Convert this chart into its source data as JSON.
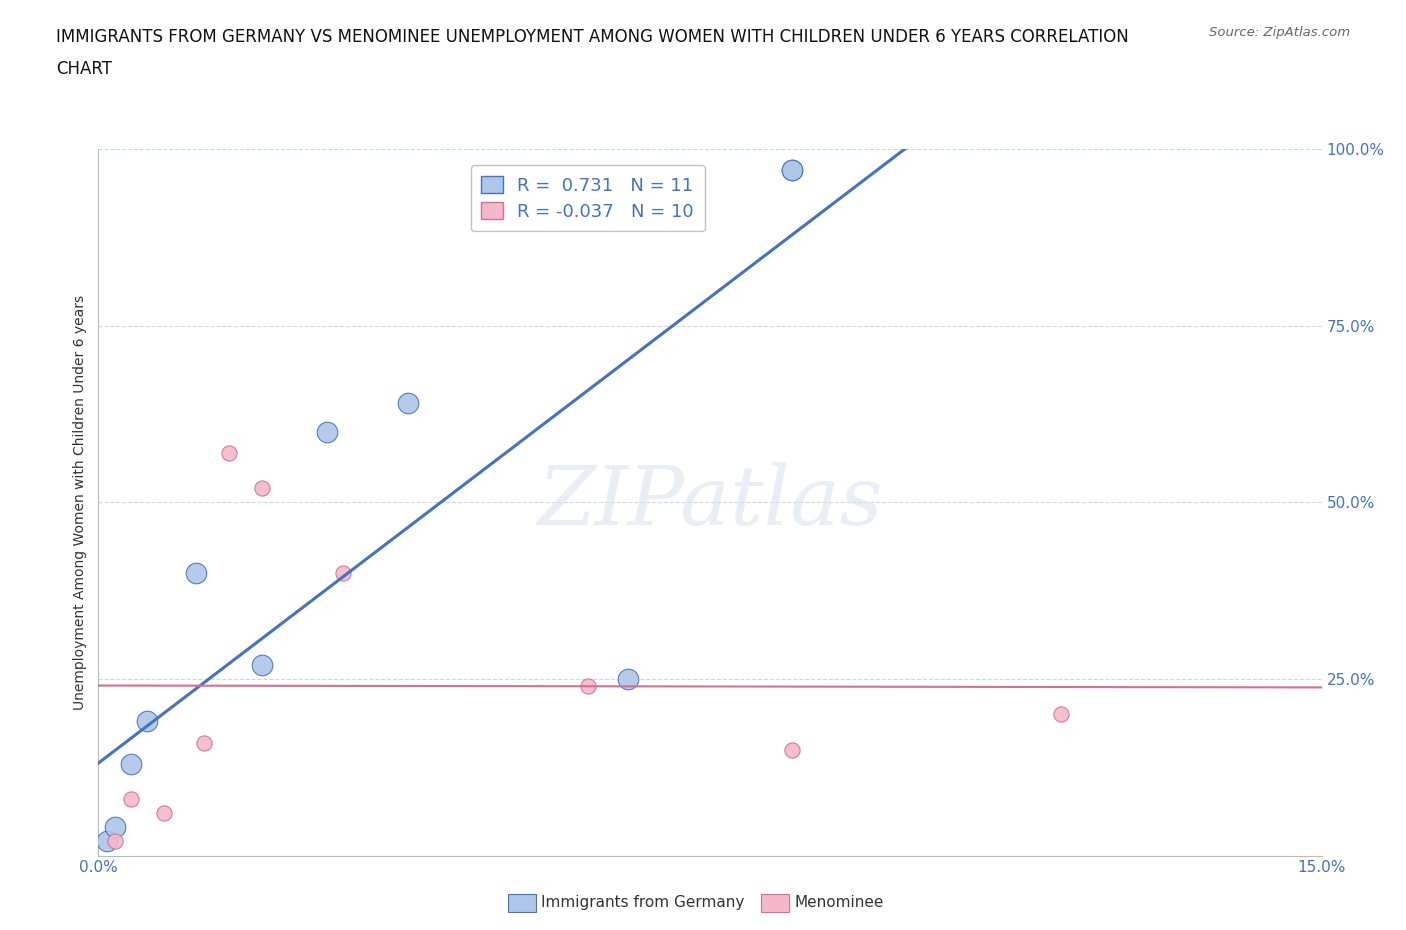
{
  "title_line1": "IMMIGRANTS FROM GERMANY VS MENOMINEE UNEMPLOYMENT AMONG WOMEN WITH CHILDREN UNDER 6 YEARS CORRELATION",
  "title_line2": "CHART",
  "source": "Source: ZipAtlas.com",
  "ylabel": "Unemployment Among Women with Children Under 6 years",
  "xlim": [
    0.0,
    0.15
  ],
  "ylim": [
    0.0,
    1.0
  ],
  "xticks": [
    0.0,
    0.025,
    0.05,
    0.075,
    0.1,
    0.125,
    0.15
  ],
  "xticklabels_show": [
    "0.0%",
    "15.0%"
  ],
  "yticks": [
    0.0,
    0.25,
    0.5,
    0.75,
    1.0
  ],
  "yticklabels": [
    "",
    "25.0%",
    "50.0%",
    "75.0%",
    "100.0%"
  ],
  "blue_color": "#aec6e8",
  "blue_line_color": "#4472c4",
  "pink_color": "#f5b8c8",
  "pink_line_color": "#d47090",
  "blue_scatter_x": [
    0.001,
    0.002,
    0.004,
    0.006,
    0.012,
    0.02,
    0.028,
    0.038,
    0.065,
    0.085,
    0.085
  ],
  "blue_scatter_y": [
    0.02,
    0.04,
    0.13,
    0.19,
    0.4,
    0.27,
    0.6,
    0.64,
    0.25,
    0.97,
    0.97
  ],
  "pink_scatter_x": [
    0.002,
    0.004,
    0.008,
    0.013,
    0.016,
    0.02,
    0.03,
    0.06,
    0.085,
    0.118
  ],
  "pink_scatter_y": [
    0.02,
    0.08,
    0.06,
    0.16,
    0.57,
    0.52,
    0.4,
    0.24,
    0.15,
    0.2
  ],
  "blue_R": 0.731,
  "blue_N": 11,
  "pink_R": -0.037,
  "pink_N": 10,
  "watermark_text": "ZIPatlas",
  "background_color": "#ffffff",
  "grid_color": "#c8d8ec",
  "title_fontsize": 12,
  "tick_fontsize": 11,
  "ylabel_fontsize": 10,
  "blue_marker_size": 220,
  "pink_marker_size": 120,
  "bottom_legend_blue_label": "Immigrants from Germany",
  "bottom_legend_pink_label": "Menominee"
}
